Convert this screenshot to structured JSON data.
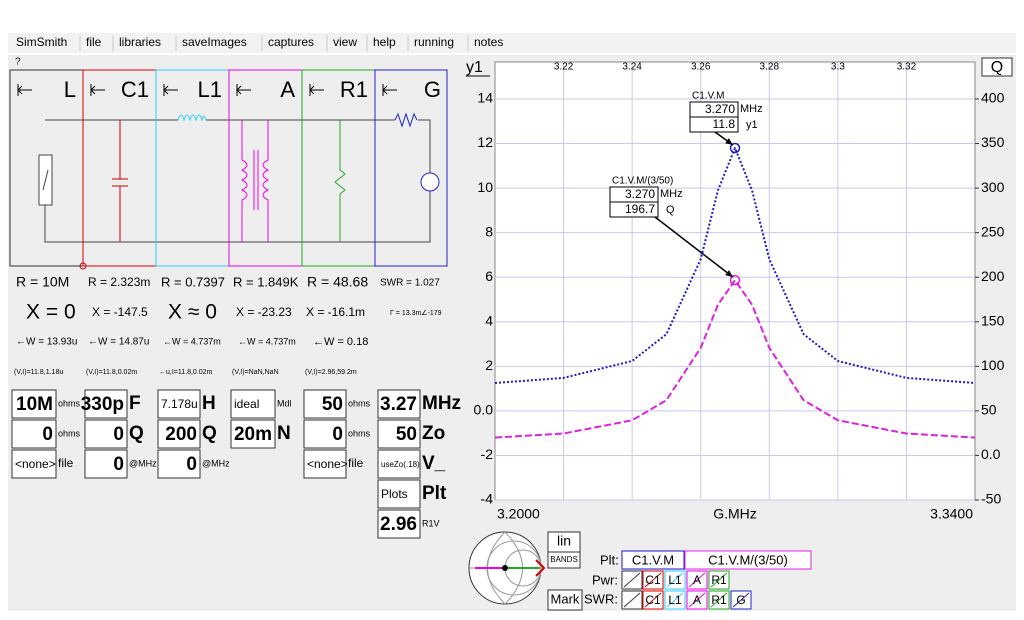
{
  "menu": [
    "SimSmith",
    "file",
    "libraries",
    "saveImages",
    "captures",
    "view",
    "help",
    "running",
    "notes"
  ],
  "circuit": {
    "help": "?",
    "elements": [
      {
        "label": "L",
        "color": "#333333"
      },
      {
        "label": "C1",
        "color": "#dd0000"
      },
      {
        "label": "L1",
        "color": "#33ccff"
      },
      {
        "label": "A",
        "color": "#ee00ee"
      },
      {
        "label": "R1",
        "color": "#22aa22"
      },
      {
        "label": "G",
        "color": "#2222cc"
      }
    ],
    "rows": [
      [
        "R = 10M",
        "R = 2.323m",
        "R = 0.7397",
        "R = 1.849K",
        "R = 48.68",
        "SWR = 1.027"
      ],
      [
        "X = 0",
        "X = -147.5",
        "X ≈ 0",
        "X = -23.23",
        "X = -16.1m",
        "Γ = 13.3m∠-179"
      ],
      [
        "←W = 13.93u",
        "←W = 14.87u",
        "←W = 4.737m",
        "←W = 4.737m",
        "←W = 0.18"
      ],
      [
        "(V,I)=11.8,1.18u",
        "(V,I)=11.8,0.02m",
        "←u,I=11.8,0.02m",
        "(V,I)=NaN,NaN",
        "(V,I)=2.96,59.2m"
      ]
    ],
    "params": [
      [
        [
          "10M",
          "ohms"
        ],
        [
          "0",
          "ohms"
        ],
        [
          "<none>",
          "file"
        ]
      ],
      [
        [
          "330p",
          "F"
        ],
        [
          "0",
          "Q"
        ],
        [
          "0",
          "@MHz"
        ]
      ],
      [
        [
          "7.178u",
          "H"
        ],
        [
          "200",
          "Q"
        ],
        [
          "0",
          "@MHz"
        ]
      ],
      [
        [
          "ideal",
          "Mdl"
        ],
        [
          "20m",
          "N"
        ]
      ],
      [
        [
          "50",
          "ohms"
        ],
        [
          "0",
          "ohms"
        ],
        [
          "<none>",
          "file"
        ]
      ],
      [
        [
          "3.27",
          "MHz"
        ],
        [
          "50",
          "Zo"
        ],
        [
          "useZo(.18)",
          "V_"
        ],
        [
          "Plots",
          "Plt"
        ],
        [
          "2.96",
          "R1V"
        ]
      ]
    ]
  },
  "chart_data": {
    "type": "line",
    "ylabel": "y1",
    "y2label": "Q",
    "xlabel": "G.MHz",
    "x_end_labels": [
      "3.2000",
      "3.3400"
    ],
    "x": [
      3.2,
      3.22,
      3.24,
      3.25,
      3.26,
      3.265,
      3.27,
      3.275,
      3.28,
      3.29,
      3.3,
      3.32,
      3.34
    ],
    "series": [
      {
        "name": "C1.V.M",
        "color": "#1a1acc",
        "axis": "y1",
        "values": [
          1.25,
          1.48,
          2.24,
          3.44,
          6.81,
          9.89,
          11.8,
          9.89,
          6.81,
          3.44,
          2.24,
          1.48,
          1.25
        ]
      },
      {
        "name": "C1.V.M/(3/50)",
        "color": "#e020e0",
        "axis": "y2",
        "values": [
          20.0,
          24.6,
          39.4,
          62.0,
          120.8,
          169.0,
          196.7,
          169.0,
          120.8,
          62.0,
          39.4,
          24.6,
          20.0
        ]
      }
    ],
    "xlim": [
      3.2,
      3.34
    ],
    "xticks": [
      3.22,
      3.24,
      3.26,
      3.28,
      3.3,
      3.32
    ],
    "ylim": [
      -4,
      15.66
    ],
    "yticks": [
      -4,
      -2,
      {
        "value": 0,
        "label": "0.0"
      },
      2,
      4,
      6,
      8,
      10,
      12,
      14
    ],
    "y2lim": [
      -50,
      441.5
    ],
    "y2ticks": [
      -50,
      {
        "value": 0,
        "label": "0.0"
      },
      50,
      100,
      150,
      200,
      250,
      300,
      350,
      400
    ],
    "grid": true,
    "annotations": [
      {
        "title": "C1.V.M",
        "x": "3.270",
        "x_unit": "MHz",
        "y": "11.8",
        "y_unit": "y1"
      },
      {
        "title": "C1.V.M/(3/50)",
        "x": "3.270",
        "x_unit": "MHz",
        "y": "196.7",
        "y_unit": "Q"
      }
    ]
  },
  "controls": {
    "scale": "lin",
    "bands": "BANDS",
    "mark": "Mark",
    "plt_label": "Plt:",
    "pwr_label": "Pwr:",
    "swr_label": "SWR:",
    "pwr": [
      "C1",
      "L1",
      "A",
      "R1"
    ],
    "swr": [
      "C1",
      "L1",
      "A",
      "R1",
      "G"
    ]
  }
}
